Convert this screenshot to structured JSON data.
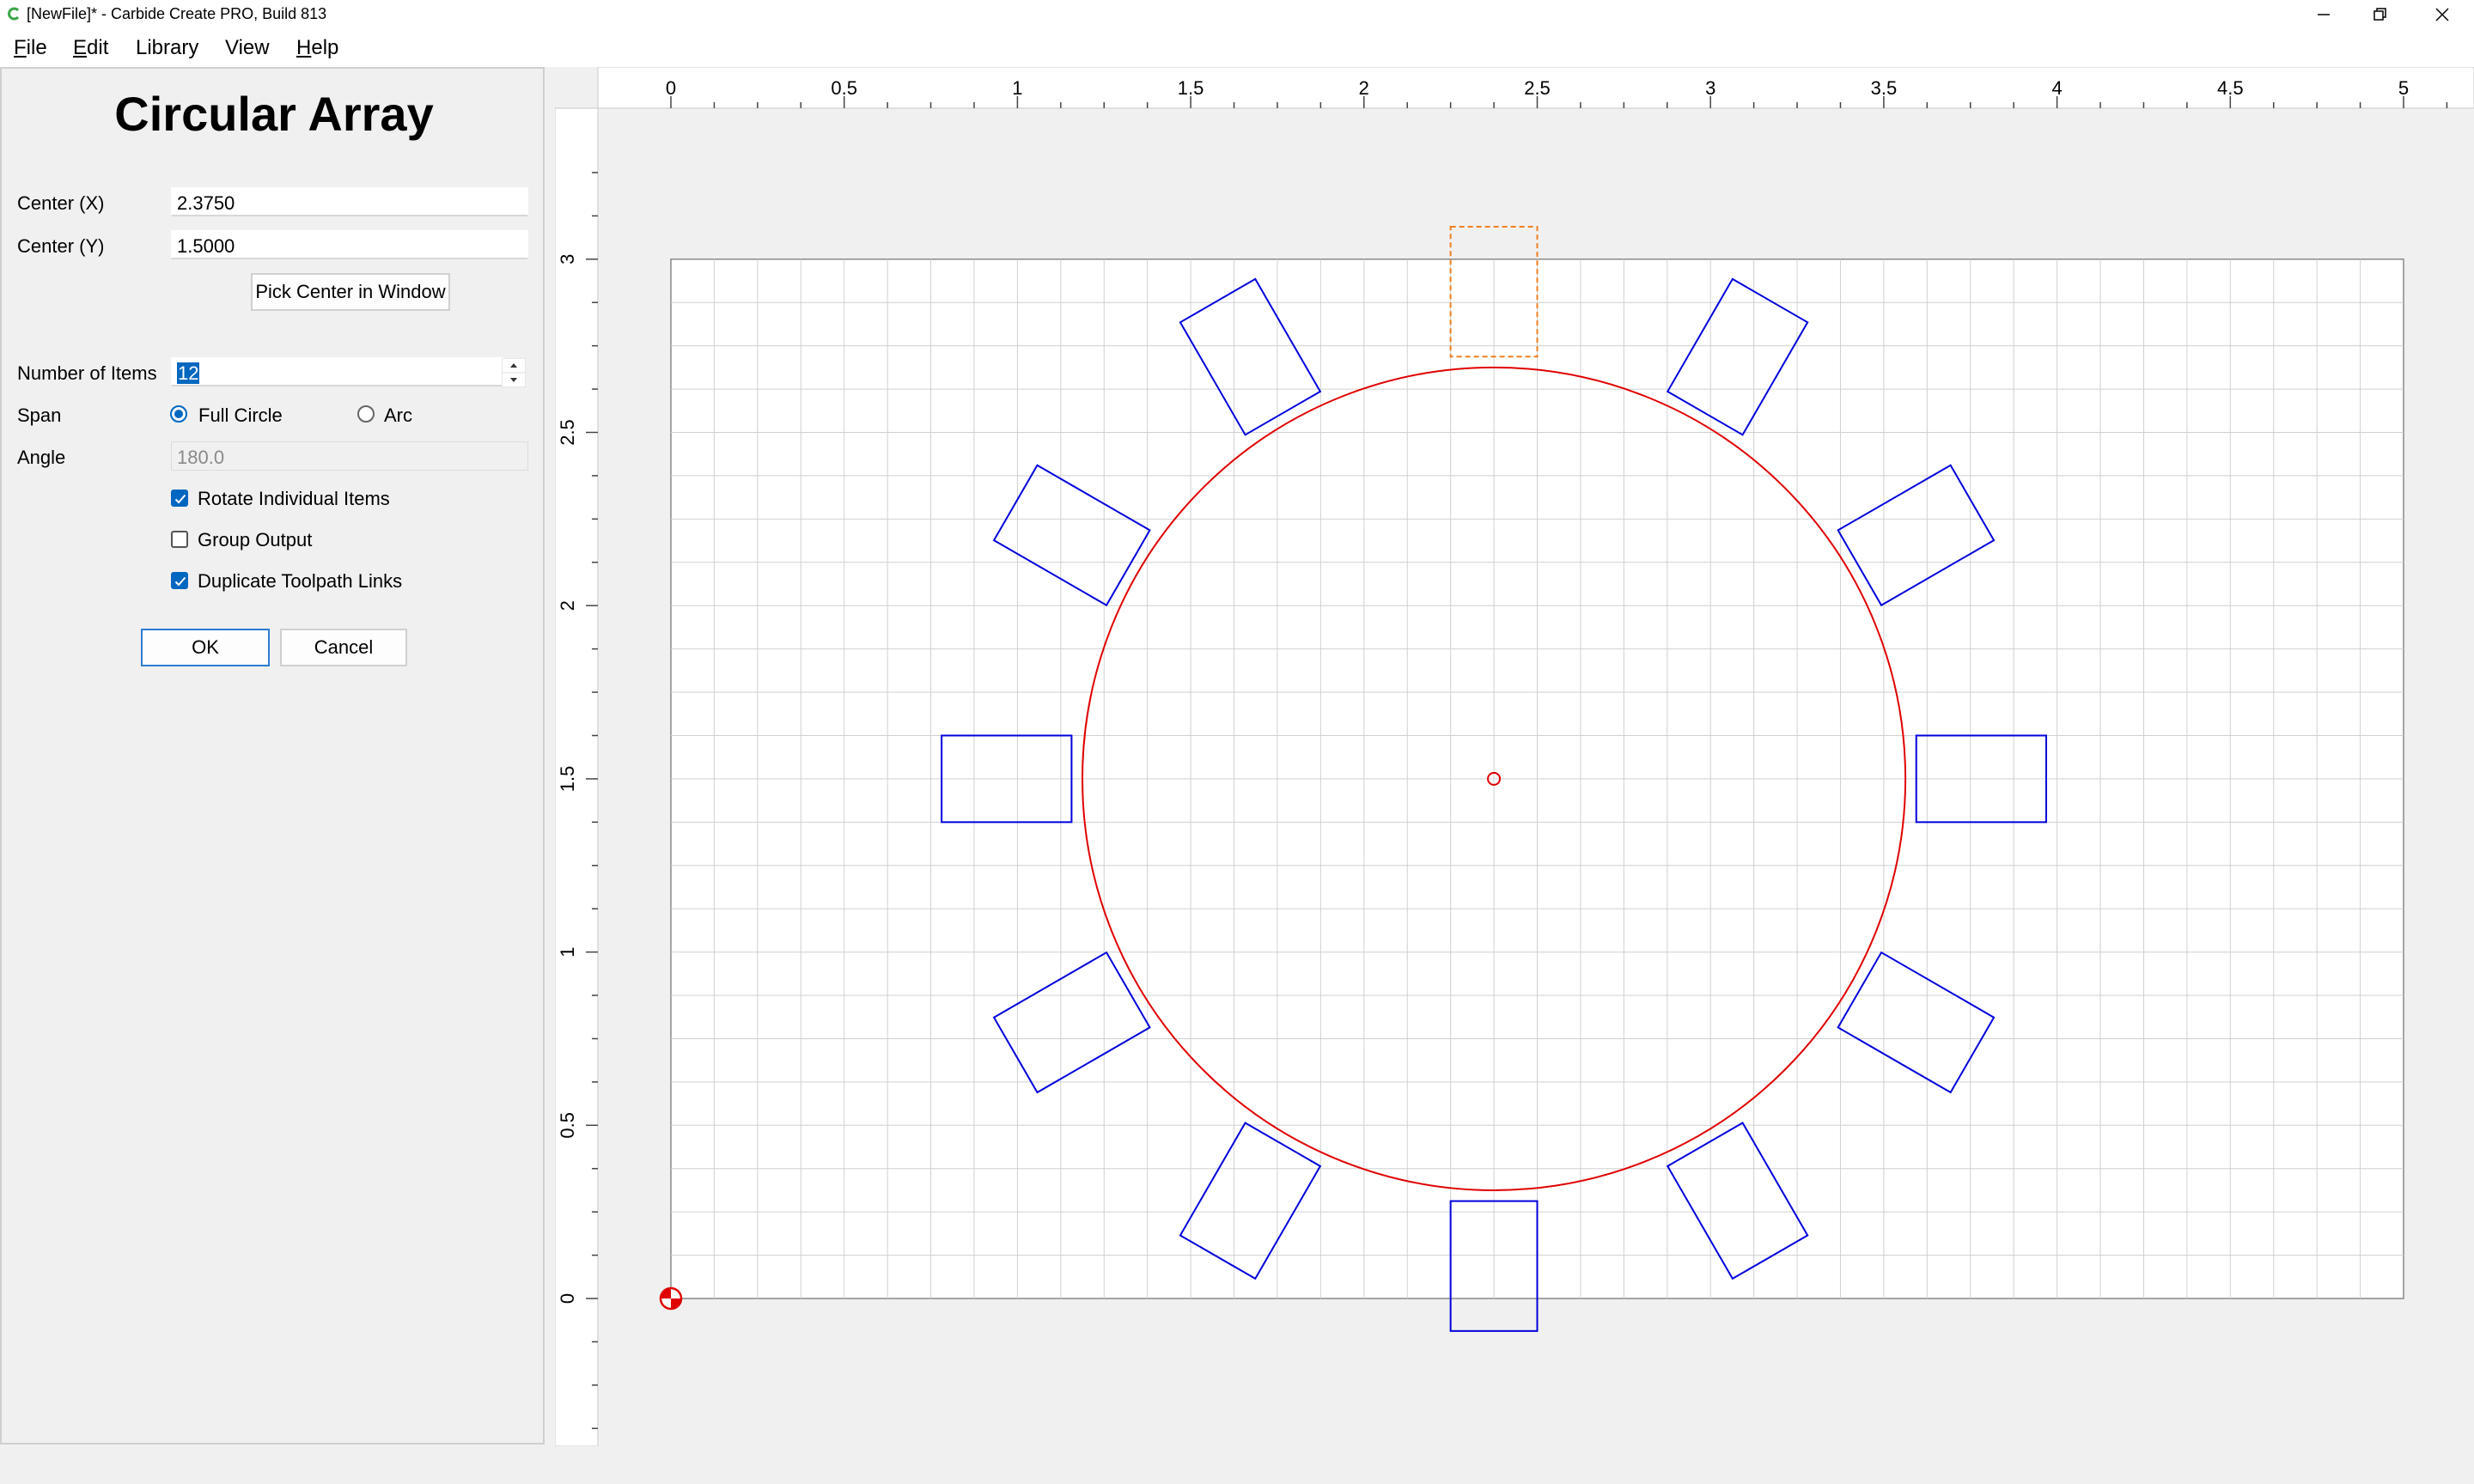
{
  "window": {
    "title": "[NewFile]* - Carbide Create PRO, Build 813",
    "app_icon": "carbide-c-icon",
    "accent": "#0067c0"
  },
  "menu": [
    {
      "label": "File",
      "accel": "F",
      "rest": "ile"
    },
    {
      "label": "Edit",
      "accel": "E",
      "rest": "dit"
    },
    {
      "label": "Library",
      "accel": "",
      "rest": "Library"
    },
    {
      "label": "View",
      "accel": "",
      "rest": "View"
    },
    {
      "label": "Help",
      "accel": "H",
      "rest": "elp"
    }
  ],
  "panel": {
    "title": "Circular Array",
    "center_x_label": "Center (X)",
    "center_x_value": "2.3750",
    "center_y_label": "Center (Y)",
    "center_y_value": "1.5000",
    "pick_center_label": "Pick Center in Window",
    "num_items_label": "Number of Items",
    "num_items_value": "12",
    "span_label": "Span",
    "span_full_label": "Full Circle",
    "span_arc_label": "Arc",
    "span_selected": "Full Circle",
    "angle_label": "Angle",
    "angle_value": "180.0",
    "rotate_label": "Rotate Individual Items",
    "rotate_checked": true,
    "group_label": "Group Output",
    "group_checked": false,
    "dup_label": "Duplicate Toolpath Links",
    "dup_checked": true,
    "ok_label": "OK",
    "cancel_label": "Cancel"
  },
  "rulers": {
    "x_labels": [
      "0",
      "0.5",
      "1",
      "1.5",
      "2",
      "2.5",
      "3",
      "3.5",
      "4",
      "4.5",
      "5"
    ],
    "y_labels": [
      "0",
      "0.5",
      "1",
      "1.5",
      "2",
      "2.5",
      "3"
    ]
  },
  "design": {
    "units": "in",
    "stock_width": 5,
    "stock_height": 3,
    "grid_step": 0.125,
    "array_center": [
      2.375,
      1.5
    ],
    "array_radius": 1.1875,
    "item_count": 12,
    "item_size": [
      0.375,
      0.25
    ],
    "item_radius": 1.4063,
    "colors": {
      "item": "#0000dd",
      "selected_item": "#f08020",
      "circle": "#e00000",
      "grid": "#d0d0d0",
      "origin": "#e00000"
    }
  }
}
